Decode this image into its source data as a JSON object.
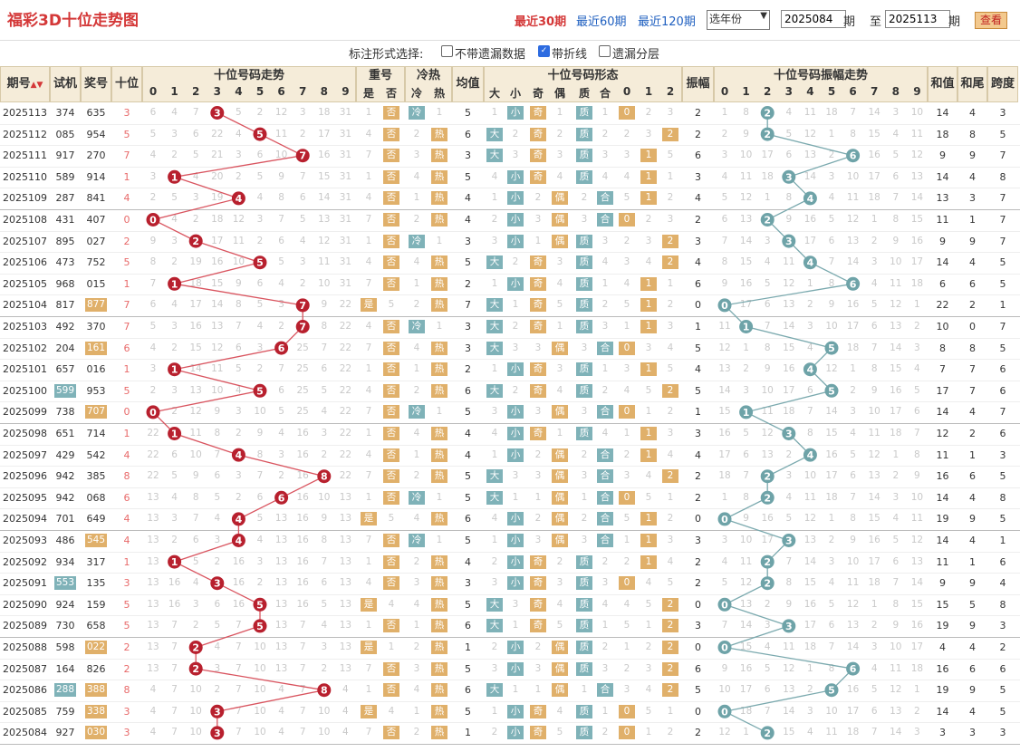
{
  "title": "福彩3D十位走势图",
  "periods": [
    {
      "label": "最近30期",
      "active": true
    },
    {
      "label": "最近60期",
      "active": false
    },
    {
      "label": "最近120期",
      "active": false
    }
  ],
  "year_select": "选年份",
  "from_value": "2025084",
  "from_unit": "期",
  "to_label": "至",
  "to_value": "2025113",
  "to_unit": "期",
  "query_button": "查看",
  "mark_label": "标注形式选择:",
  "mark_options": [
    {
      "label": "不带遗漏数据",
      "checked": false
    },
    {
      "label": "带折线",
      "checked": true
    },
    {
      "label": "遗漏分层",
      "checked": false
    }
  ],
  "headers": {
    "issue": "期号",
    "test": "试机",
    "prize": "奖号",
    "tens": "十位",
    "trend": "十位号码走势",
    "repeat": "重号",
    "repeat_yes": "是",
    "repeat_no": "否",
    "hotcold": "冷热",
    "cold": "冷",
    "hot": "热",
    "avg": "均值",
    "form": "十位号码形态",
    "big": "大",
    "small": "小",
    "odd": "奇",
    "even": "偶",
    "prime": "质",
    "comp": "合",
    "amp": "振幅",
    "amp_trend": "十位号码振幅走势",
    "sum": "和值",
    "tail": "和尾",
    "span": "跨度"
  },
  "digits": [
    "0",
    "1",
    "2",
    "3",
    "4",
    "5",
    "6",
    "7",
    "8",
    "9"
  ],
  "road": [
    "0",
    "1",
    "2"
  ],
  "rows": [
    {
      "issue": "2025113",
      "test": "374",
      "prize": "635",
      "tens": "3",
      "amp": "2",
      "sum": "14",
      "tail": "4",
      "span": "3",
      "temp": "冷",
      "avg": "5",
      "test_hl": false,
      "prize_hl": false
    },
    {
      "issue": "2025112",
      "test": "085",
      "prize": "954",
      "tens": "5",
      "amp": "2",
      "sum": "18",
      "tail": "8",
      "span": "5",
      "temp": "热",
      "avg": "6",
      "test_hl": false,
      "prize_hl": false
    },
    {
      "issue": "2025111",
      "test": "917",
      "prize": "270",
      "tens": "7",
      "amp": "6",
      "sum": "9",
      "tail": "9",
      "span": "7",
      "temp": "热",
      "avg": "3",
      "test_hl": false,
      "prize_hl": false
    },
    {
      "issue": "2025110",
      "test": "589",
      "prize": "914",
      "tens": "1",
      "amp": "3",
      "sum": "14",
      "tail": "4",
      "span": "8",
      "temp": "热",
      "avg": "5",
      "test_hl": false,
      "prize_hl": false
    },
    {
      "issue": "2025109",
      "test": "287",
      "prize": "841",
      "tens": "4",
      "amp": "4",
      "sum": "13",
      "tail": "3",
      "span": "7",
      "temp": "热",
      "avg": "4",
      "test_hl": false,
      "prize_hl": false
    },
    {
      "issue": "2025108",
      "test": "431",
      "prize": "407",
      "tens": "0",
      "amp": "2",
      "sum": "11",
      "tail": "1",
      "span": "7",
      "temp": "热",
      "avg": "4",
      "test_hl": false,
      "prize_hl": false
    },
    {
      "issue": "2025107",
      "test": "895",
      "prize": "027",
      "tens": "2",
      "amp": "3",
      "sum": "9",
      "tail": "9",
      "span": "7",
      "temp": "冷",
      "avg": "3",
      "test_hl": false,
      "prize_hl": false
    },
    {
      "issue": "2025106",
      "test": "473",
      "prize": "752",
      "tens": "5",
      "amp": "4",
      "sum": "14",
      "tail": "4",
      "span": "5",
      "temp": "热",
      "avg": "5",
      "test_hl": false,
      "prize_hl": false
    },
    {
      "issue": "2025105",
      "test": "968",
      "prize": "015",
      "tens": "1",
      "amp": "6",
      "sum": "6",
      "tail": "6",
      "span": "5",
      "temp": "热",
      "avg": "2",
      "test_hl": false,
      "prize_hl": false
    },
    {
      "issue": "2025104",
      "test": "817",
      "prize": "877",
      "tens": "7",
      "amp": "0",
      "sum": "22",
      "tail": "2",
      "span": "1",
      "temp": "热",
      "avg": "7",
      "test_hl": false,
      "prize_hl": true
    },
    {
      "issue": "2025103",
      "test": "492",
      "prize": "370",
      "tens": "7",
      "amp": "1",
      "sum": "10",
      "tail": "0",
      "span": "7",
      "temp": "冷",
      "avg": "3",
      "test_hl": false,
      "prize_hl": false
    },
    {
      "issue": "2025102",
      "test": "204",
      "prize": "161",
      "tens": "6",
      "amp": "5",
      "sum": "8",
      "tail": "8",
      "span": "5",
      "temp": "热",
      "avg": "3",
      "test_hl": false,
      "prize_hl": true
    },
    {
      "issue": "2025101",
      "test": "657",
      "prize": "016",
      "tens": "1",
      "amp": "4",
      "sum": "7",
      "tail": "7",
      "span": "6",
      "temp": "热",
      "avg": "2",
      "test_hl": false,
      "prize_hl": false
    },
    {
      "issue": "2025100",
      "test": "599",
      "prize": "953",
      "tens": "5",
      "amp": "5",
      "sum": "17",
      "tail": "7",
      "span": "6",
      "temp": "热",
      "avg": "6",
      "test_hl": true,
      "prize_hl": false
    },
    {
      "issue": "2025099",
      "test": "738",
      "prize": "707",
      "tens": "0",
      "amp": "1",
      "sum": "14",
      "tail": "4",
      "span": "7",
      "temp": "冷",
      "avg": "5",
      "test_hl": false,
      "prize_hl": true
    },
    {
      "issue": "2025098",
      "test": "651",
      "prize": "714",
      "tens": "1",
      "amp": "3",
      "sum": "12",
      "tail": "2",
      "span": "6",
      "temp": "热",
      "avg": "4",
      "test_hl": false,
      "prize_hl": false
    },
    {
      "issue": "2025097",
      "test": "429",
      "prize": "542",
      "tens": "4",
      "amp": "4",
      "sum": "11",
      "tail": "1",
      "span": "3",
      "temp": "热",
      "avg": "4",
      "test_hl": false,
      "prize_hl": false
    },
    {
      "issue": "2025096",
      "test": "942",
      "prize": "385",
      "tens": "8",
      "amp": "2",
      "sum": "16",
      "tail": "6",
      "span": "5",
      "temp": "热",
      "avg": "5",
      "test_hl": false,
      "prize_hl": false
    },
    {
      "issue": "2025095",
      "test": "942",
      "prize": "068",
      "tens": "6",
      "amp": "2",
      "sum": "14",
      "tail": "4",
      "span": "8",
      "temp": "冷",
      "avg": "5",
      "test_hl": false,
      "prize_hl": false
    },
    {
      "issue": "2025094",
      "test": "701",
      "prize": "649",
      "tens": "4",
      "amp": "0",
      "sum": "19",
      "tail": "9",
      "span": "5",
      "temp": "热",
      "avg": "6",
      "test_hl": false,
      "prize_hl": false
    },
    {
      "issue": "2025093",
      "test": "486",
      "prize": "545",
      "tens": "4",
      "amp": "3",
      "sum": "14",
      "tail": "4",
      "span": "1",
      "temp": "冷",
      "avg": "5",
      "test_hl": false,
      "prize_hl": true
    },
    {
      "issue": "2025092",
      "test": "934",
      "prize": "317",
      "tens": "1",
      "amp": "2",
      "sum": "11",
      "tail": "1",
      "span": "6",
      "temp": "热",
      "avg": "4",
      "test_hl": false,
      "prize_hl": false
    },
    {
      "issue": "2025091",
      "test": "553",
      "prize": "135",
      "tens": "3",
      "amp": "2",
      "sum": "9",
      "tail": "9",
      "span": "4",
      "temp": "热",
      "avg": "3",
      "test_hl": true,
      "prize_hl": false
    },
    {
      "issue": "2025090",
      "test": "924",
      "prize": "159",
      "tens": "5",
      "amp": "0",
      "sum": "15",
      "tail": "5",
      "span": "8",
      "temp": "热",
      "avg": "5",
      "test_hl": false,
      "prize_hl": false
    },
    {
      "issue": "2025089",
      "test": "730",
      "prize": "658",
      "tens": "5",
      "amp": "3",
      "sum": "19",
      "tail": "9",
      "span": "3",
      "temp": "热",
      "avg": "6",
      "test_hl": false,
      "prize_hl": false
    },
    {
      "issue": "2025088",
      "test": "598",
      "prize": "022",
      "tens": "2",
      "amp": "0",
      "sum": "4",
      "tail": "4",
      "span": "2",
      "temp": "热",
      "avg": "1",
      "test_hl": false,
      "prize_hl": true
    },
    {
      "issue": "2025087",
      "test": "164",
      "prize": "826",
      "tens": "2",
      "amp": "6",
      "sum": "16",
      "tail": "6",
      "span": "6",
      "temp": "热",
      "avg": "5",
      "test_hl": false,
      "prize_hl": false
    },
    {
      "issue": "2025086",
      "test": "288",
      "prize": "388",
      "tens": "8",
      "amp": "5",
      "sum": "19",
      "tail": "9",
      "span": "5",
      "temp": "热",
      "avg": "6",
      "test_hl": true,
      "prize_hl": true
    },
    {
      "issue": "2025085",
      "test": "759",
      "prize": "338",
      "tens": "3",
      "amp": "0",
      "sum": "14",
      "tail": "4",
      "span": "5",
      "temp": "热",
      "avg": "5",
      "test_hl": false,
      "prize_hl": true
    },
    {
      "issue": "2025084",
      "test": "927",
      "prize": "030",
      "tens": "3",
      "amp": "2",
      "sum": "3",
      "tail": "3",
      "span": "3",
      "temp": "热",
      "avg": "1",
      "test_hl": false,
      "prize_hl": true
    }
  ],
  "colors": {
    "accent": "#d43838",
    "ball_red": "#b8202e",
    "ball_teal": "#6ea3a8",
    "tag_gold": "#e0b06a",
    "tag_teal": "#7fb2b8",
    "header_bg": "#f5ecd9"
  }
}
